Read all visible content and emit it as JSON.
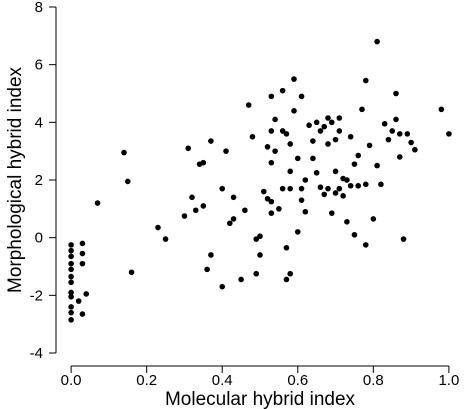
{
  "chart_data": {
    "type": "scatter",
    "title": "",
    "xlabel": "Molecular hybrid index",
    "ylabel": "Morphological hybrid index",
    "xlim": [
      -0.04,
      1.04
    ],
    "ylim": [
      -4,
      8
    ],
    "xticks": [
      0.0,
      0.2,
      0.4,
      0.6,
      0.8,
      1.0
    ],
    "xtick_labels": [
      "0.0",
      "0.2",
      "0.4",
      "0.6",
      "0.8",
      "1.0"
    ],
    "yticks": [
      -4,
      -2,
      0,
      2,
      4,
      6,
      8
    ],
    "ytick_labels": [
      "-4",
      "-2",
      "0",
      "2",
      "4",
      "6",
      "8"
    ],
    "grid": false,
    "legend": "none",
    "marker_color": "#000000",
    "series": [
      {
        "points": [
          [
            0.0,
            -0.25
          ],
          [
            0.0,
            -0.45
          ],
          [
            0.0,
            -0.65
          ],
          [
            0.0,
            -0.9
          ],
          [
            0.0,
            -1.1
          ],
          [
            0.0,
            -1.35
          ],
          [
            0.0,
            -1.55
          ],
          [
            0.0,
            -1.9
          ],
          [
            0.0,
            -2.05
          ],
          [
            0.0,
            -2.4
          ],
          [
            0.0,
            -2.6
          ],
          [
            0.0,
            -2.85
          ],
          [
            0.03,
            -0.2
          ],
          [
            0.03,
            -0.55
          ],
          [
            0.03,
            -0.9
          ],
          [
            0.02,
            -2.2
          ],
          [
            0.03,
            -2.65
          ],
          [
            0.04,
            -1.95
          ],
          [
            0.07,
            1.2
          ],
          [
            0.14,
            2.95
          ],
          [
            0.15,
            1.95
          ],
          [
            0.16,
            -1.2
          ],
          [
            0.23,
            0.35
          ],
          [
            0.25,
            -0.05
          ],
          [
            0.3,
            0.75
          ],
          [
            0.31,
            3.1
          ],
          [
            0.32,
            1.4
          ],
          [
            0.33,
            0.95
          ],
          [
            0.34,
            2.55
          ],
          [
            0.35,
            1.1
          ],
          [
            0.35,
            2.6
          ],
          [
            0.36,
            -1.1
          ],
          [
            0.37,
            3.35
          ],
          [
            0.37,
            -0.6
          ],
          [
            0.4,
            -1.7
          ],
          [
            0.4,
            1.7
          ],
          [
            0.41,
            3.0
          ],
          [
            0.42,
            0.5
          ],
          [
            0.43,
            0.65
          ],
          [
            0.43,
            1.4
          ],
          [
            0.45,
            -1.45
          ],
          [
            0.46,
            0.95
          ],
          [
            0.47,
            4.6
          ],
          [
            0.48,
            3.5
          ],
          [
            0.49,
            -0.05
          ],
          [
            0.49,
            -1.25
          ],
          [
            0.5,
            0.05
          ],
          [
            0.5,
            -0.6
          ],
          [
            0.51,
            1.6
          ],
          [
            0.52,
            3.15
          ],
          [
            0.52,
            1.35
          ],
          [
            0.53,
            3.7
          ],
          [
            0.53,
            2.6
          ],
          [
            0.53,
            1.25
          ],
          [
            0.53,
            0.85
          ],
          [
            0.53,
            4.9
          ],
          [
            0.54,
            4.1
          ],
          [
            0.54,
            3.0
          ],
          [
            0.55,
            1.0
          ],
          [
            0.56,
            3.7
          ],
          [
            0.56,
            5.1
          ],
          [
            0.56,
            1.7
          ],
          [
            0.57,
            -0.35
          ],
          [
            0.57,
            3.6
          ],
          [
            0.57,
            -1.45
          ],
          [
            0.58,
            2.3
          ],
          [
            0.58,
            1.7
          ],
          [
            0.58,
            3.25
          ],
          [
            0.58,
            -1.25
          ],
          [
            0.59,
            5.5
          ],
          [
            0.59,
            4.4
          ],
          [
            0.6,
            0.2
          ],
          [
            0.6,
            2.75
          ],
          [
            0.61,
            1.7
          ],
          [
            0.61,
            1.3
          ],
          [
            0.61,
            4.9
          ],
          [
            0.62,
            2.0
          ],
          [
            0.62,
            0.9
          ],
          [
            0.63,
            3.9
          ],
          [
            0.64,
            2.75
          ],
          [
            0.64,
            3.35
          ],
          [
            0.65,
            4.0
          ],
          [
            0.65,
            2.25
          ],
          [
            0.66,
            3.7
          ],
          [
            0.66,
            1.75
          ],
          [
            0.67,
            1.5
          ],
          [
            0.67,
            3.85
          ],
          [
            0.68,
            4.15
          ],
          [
            0.68,
            3.25
          ],
          [
            0.68,
            1.7
          ],
          [
            0.69,
            4.0
          ],
          [
            0.69,
            0.85
          ],
          [
            0.7,
            2.3
          ],
          [
            0.7,
            1.55
          ],
          [
            0.7,
            3.4
          ],
          [
            0.71,
            4.15
          ],
          [
            0.71,
            1.7
          ],
          [
            0.71,
            3.7
          ],
          [
            0.72,
            1.45
          ],
          [
            0.72,
            2.05
          ],
          [
            0.73,
            2.0
          ],
          [
            0.73,
            0.55
          ],
          [
            0.74,
            3.5
          ],
          [
            0.74,
            1.8
          ],
          [
            0.75,
            2.55
          ],
          [
            0.75,
            0.1
          ],
          [
            0.76,
            1.8
          ],
          [
            0.76,
            2.85
          ],
          [
            0.77,
            4.45
          ],
          [
            0.78,
            1.85
          ],
          [
            0.78,
            5.45
          ],
          [
            0.78,
            -0.25
          ],
          [
            0.79,
            3.2
          ],
          [
            0.8,
            0.65
          ],
          [
            0.81,
            6.8
          ],
          [
            0.81,
            2.5
          ],
          [
            0.82,
            1.85
          ],
          [
            0.83,
            3.95
          ],
          [
            0.84,
            3.4
          ],
          [
            0.85,
            3.7
          ],
          [
            0.86,
            4.1
          ],
          [
            0.86,
            5.0
          ],
          [
            0.87,
            3.6
          ],
          [
            0.87,
            2.8
          ],
          [
            0.88,
            -0.05
          ],
          [
            0.89,
            3.6
          ],
          [
            0.9,
            3.3
          ],
          [
            0.91,
            3.05
          ],
          [
            0.98,
            4.45
          ],
          [
            1.0,
            3.6
          ]
        ]
      }
    ]
  }
}
